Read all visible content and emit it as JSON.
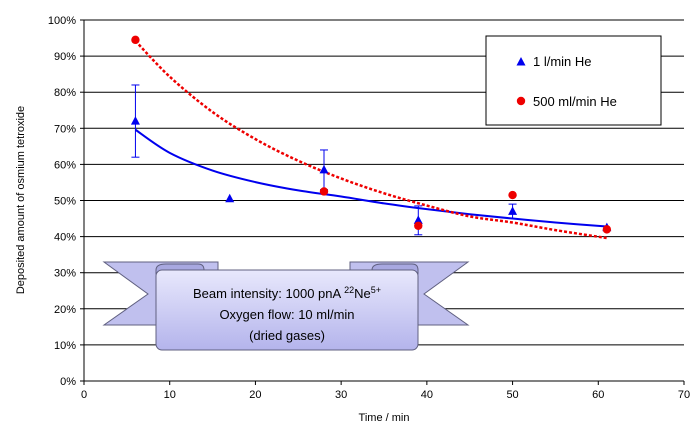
{
  "chart_data": {
    "type": "scatter",
    "xlabel": "Time / min",
    "ylabel": "Deposited amount of osmium tetroxide",
    "xlim": [
      0,
      70
    ],
    "ylim": [
      0,
      100
    ],
    "x_ticks": [
      "0",
      "10",
      "20",
      "30",
      "40",
      "50",
      "60",
      "70"
    ],
    "y_ticks": [
      "0%",
      "10%",
      "20%",
      "30%",
      "40%",
      "50%",
      "60%",
      "70%",
      "80%",
      "90%",
      "100%"
    ],
    "grid": "horizontal",
    "legend_position": "top-right",
    "series": [
      {
        "name": "1 l/min He",
        "marker": "triangle",
        "color": "#0000ee",
        "points": [
          {
            "x": 6,
            "y": 72,
            "err": 10
          },
          {
            "x": 17,
            "y": 50.5
          },
          {
            "x": 28,
            "y": 58.5,
            "err": 5.5
          },
          {
            "x": 39,
            "y": 44.5,
            "err": 4
          },
          {
            "x": 50,
            "y": 47,
            "err": 2
          },
          {
            "x": 61,
            "y": 42.5
          }
        ],
        "fit_points": [
          [
            6,
            69.6
          ],
          [
            10,
            63.2
          ],
          [
            15,
            58.3
          ],
          [
            20,
            55.1
          ],
          [
            25,
            52.8
          ],
          [
            30,
            51.1
          ],
          [
            35,
            49.2
          ],
          [
            40,
            47.6
          ],
          [
            45,
            46.2
          ],
          [
            50,
            45.0
          ],
          [
            55,
            43.9
          ],
          [
            61,
            42.8
          ]
        ]
      },
      {
        "name": "500 ml/min He",
        "marker": "circle",
        "color": "#ee0000",
        "points": [
          {
            "x": 6,
            "y": 94.5
          },
          {
            "x": 28,
            "y": 52.5
          },
          {
            "x": 39,
            "y": 43
          },
          {
            "x": 50,
            "y": 51.5
          },
          {
            "x": 61,
            "y": 42
          }
        ],
        "fit_points": [
          [
            6,
            94.2
          ],
          [
            10,
            84.3
          ],
          [
            15,
            74.5
          ],
          [
            20,
            67.0
          ],
          [
            25,
            61.0
          ],
          [
            30,
            56.1
          ],
          [
            35,
            52.0
          ],
          [
            40,
            48.6
          ],
          [
            45,
            45.6
          ],
          [
            50,
            43.9
          ],
          [
            55,
            41.8
          ],
          [
            61,
            39.6
          ]
        ]
      }
    ],
    "annotation": {
      "line1_prefix": "Beam intensity: 1000 pnA ",
      "line1_sup1": "22",
      "line1_mid": "Ne",
      "line1_sup2": "5+",
      "line2": "Oxygen flow: 10 ml/min",
      "line3": "(dried gases)"
    },
    "colors": {
      "banner_fill": "#c8c8f0",
      "banner_stroke": "#606080",
      "grid": "#000000"
    }
  }
}
